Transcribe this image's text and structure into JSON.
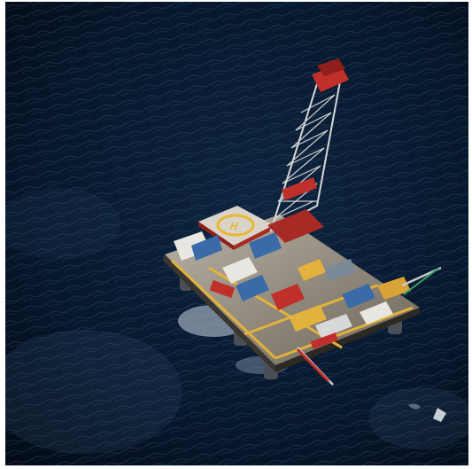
{
  "photo": {
    "subject": "semi-submersible-oil-rig",
    "colors": {
      "sea_dark": "#030b1a",
      "sea_mid": "#0d2540",
      "sea_highlight": "#5a7a9a",
      "helideck": "#d9d3c9",
      "helideck_mark": "#e8b832",
      "derrick_red": "#c0302a",
      "derrick_steel": "#d8d8d8",
      "deck_yellow": "#e3b23c",
      "equipment_blue": "#3a6aa8",
      "foam": "#e6eef5"
    }
  }
}
